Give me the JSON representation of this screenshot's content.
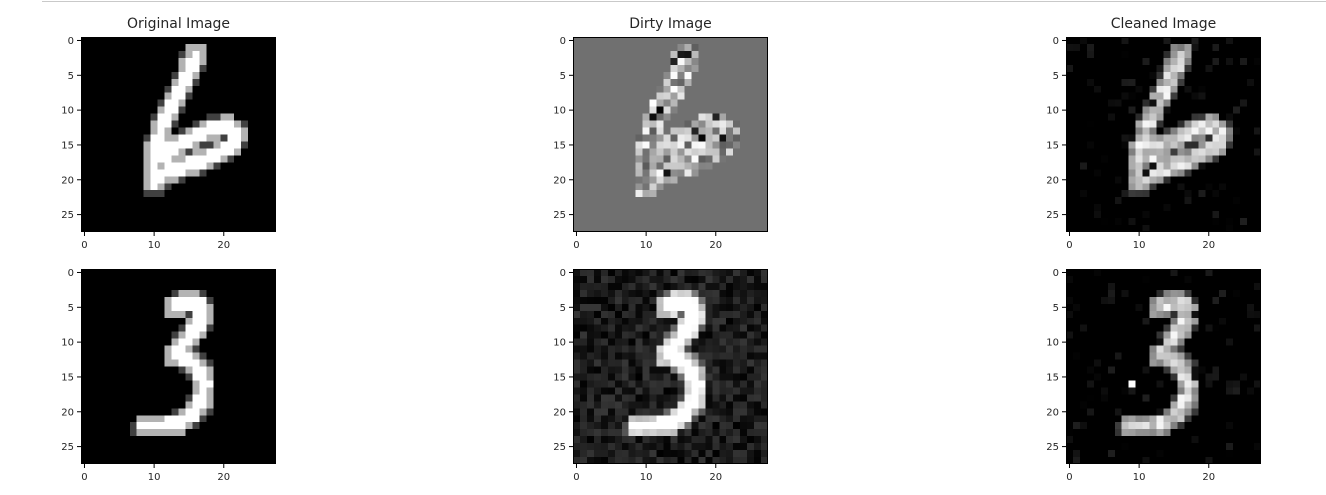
{
  "chart_data": {
    "type": "image_grid",
    "columns": [
      {
        "title": "Original Image"
      },
      {
        "title": "Dirty Image"
      },
      {
        "title": "Cleaned Image"
      }
    ],
    "xlim": [
      -0.5,
      27.5
    ],
    "ylim": [
      27.5,
      -0.5
    ],
    "x_ticks": [
      0,
      10,
      20
    ],
    "y_ticks": [
      0,
      5,
      10,
      15,
      20,
      25
    ],
    "cmap": "gray",
    "rows": [
      {
        "digit": "6",
        "dirty_background": "#707070"
      },
      {
        "digit": "3",
        "dirty_background": "#161616"
      }
    ]
  }
}
